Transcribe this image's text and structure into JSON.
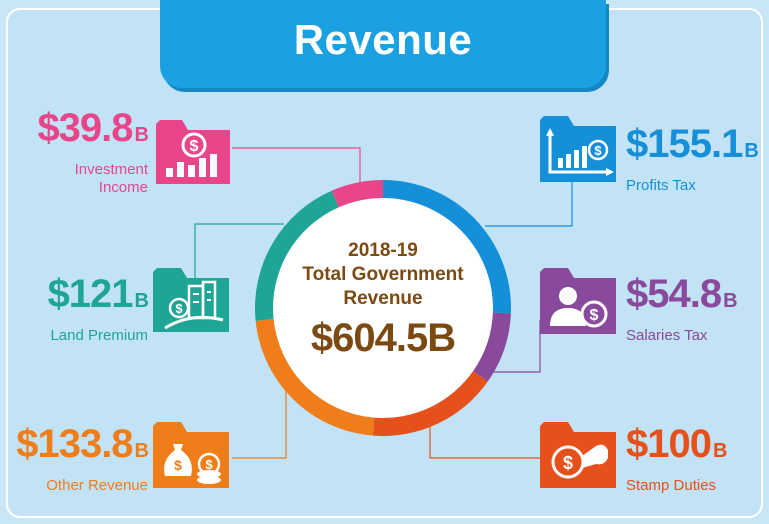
{
  "header": {
    "title": "Revenue"
  },
  "center": {
    "line1": "2018-19",
    "line2": "Total Government",
    "line3": "Revenue",
    "total": "$604.5B"
  },
  "colors": {
    "investment": "#e8458b",
    "profits": "#1590d8",
    "salaries": "#8a4a9c",
    "stamp": "#e6501a",
    "other": "#ef7d1a",
    "land": "#1ea596",
    "amount_text": "#7a4a12"
  },
  "items": {
    "investment": {
      "amount": "$39.8",
      "unit": "B",
      "name_line1": "Investment",
      "name_line2": "Income",
      "icon": "bar-chart-dollar-icon"
    },
    "land": {
      "amount": "$121",
      "unit": "B",
      "name_line1": "Land Premium",
      "icon": "buildings-icon"
    },
    "other": {
      "amount": "$133.8",
      "unit": "B",
      "name_line1": "Other Revenue",
      "icon": "money-bag-icon"
    },
    "profits": {
      "amount": "$155.1",
      "unit": "B",
      "name_line1": "Profits Tax",
      "icon": "rising-chart-icon"
    },
    "salaries": {
      "amount": "$54.8",
      "unit": "B",
      "name_line1": "Salaries Tax",
      "icon": "person-dollar-icon"
    },
    "stamp": {
      "amount": "$100",
      "unit": "B",
      "name_line1": "Stamp Duties",
      "icon": "stamp-icon"
    }
  },
  "chart_data": {
    "type": "pie",
    "title": "2018-19 Total Government Revenue",
    "total": 604.5,
    "unit": "B",
    "series": [
      {
        "name": "Profits Tax",
        "value": 155.1,
        "color": "#1590d8"
      },
      {
        "name": "Salaries Tax",
        "value": 54.8,
        "color": "#8a4a9c"
      },
      {
        "name": "Stamp Duties",
        "value": 100,
        "color": "#e6501a"
      },
      {
        "name": "Other Revenue",
        "value": 133.8,
        "color": "#ef7d1a"
      },
      {
        "name": "Land Premium",
        "value": 121,
        "color": "#1ea596"
      },
      {
        "name": "Investment Income",
        "value": 39.8,
        "color": "#e8458b"
      }
    ]
  }
}
